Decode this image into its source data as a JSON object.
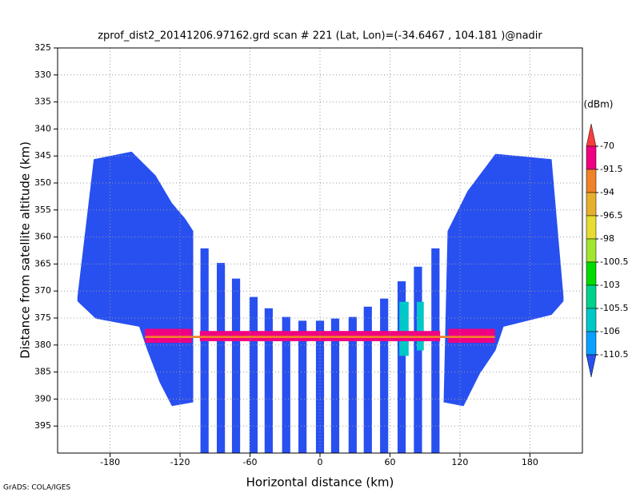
{
  "chart_data": {
    "type": "field",
    "title": "zprof_dist2_20141206.97162.grd  scan # 221  (Lat, Lon)=(-34.6467 , 104.181 )@nadir",
    "xlabel": "Horizontal distance (km)",
    "ylabel": "Distance from satellite altitude (km)",
    "footer": "GrADS: COLA/IGES",
    "xlim": [
      -225,
      225
    ],
    "xticks": [
      -180,
      -120,
      -60,
      0,
      60,
      120,
      180
    ],
    "ylim": [
      325,
      400
    ],
    "y_inverted": true,
    "yticks": [
      325,
      330,
      335,
      340,
      345,
      350,
      355,
      360,
      365,
      370,
      375,
      380,
      385,
      390,
      395
    ],
    "grid": true,
    "colorbar": {
      "unit": "(dBm)",
      "labels": [
        -70,
        -91.5,
        -94,
        -96.5,
        -98,
        -100.5,
        -103,
        -105.5,
        -106,
        -110.5
      ],
      "colors": [
        "#fa3c3c",
        "#f00082",
        "#f08228",
        "#e6af2d",
        "#e6dc32",
        "#a0e632",
        "#00dc00",
        "#00d28c",
        "#00c8c8",
        "#0aa0ff",
        "#2850f0"
      ]
    },
    "field_color": "#2850f0",
    "polygons": [
      [
        [
          -208,
          371.1
        ],
        [
          -194,
          345.6
        ],
        [
          -161.5,
          344.2
        ],
        [
          -141,
          348.6
        ],
        [
          -127,
          353.7
        ],
        [
          -115.6,
          356.6
        ],
        [
          -108.7,
          358.9
        ],
        [
          -108.7,
          390.6
        ],
        [
          -127,
          391.3
        ],
        [
          -137.5,
          386.9
        ],
        [
          -148,
          381
        ],
        [
          -155,
          376.6
        ],
        [
          -192.4,
          375.1
        ],
        [
          -208,
          371.9
        ]
      ],
      [
        [
          208.8,
          371.1
        ],
        [
          198.6,
          345.6
        ],
        [
          150.5,
          344.6
        ],
        [
          126.5,
          351.5
        ],
        [
          109.4,
          358.9
        ],
        [
          106,
          390.6
        ],
        [
          123.1,
          391.3
        ],
        [
          136.8,
          385.4
        ],
        [
          150.5,
          381
        ],
        [
          157.4,
          376.6
        ],
        [
          198.6,
          374.4
        ],
        [
          208.8,
          371.9
        ]
      ]
    ],
    "column_width": 7,
    "columns": [
      [
        -99,
        362.1,
        400
      ],
      [
        -85,
        364.8,
        400
      ],
      [
        -72,
        367.7,
        400
      ],
      [
        -57,
        371.1,
        400
      ],
      [
        -44,
        373.2,
        400
      ],
      [
        -29,
        374.8,
        400
      ],
      [
        -15,
        375.5,
        400
      ],
      [
        0,
        375.5,
        400
      ],
      [
        13,
        375.1,
        400
      ],
      [
        28,
        374.8,
        400
      ],
      [
        41,
        372.9,
        400
      ],
      [
        55,
        371.4,
        400
      ],
      [
        70,
        368.2,
        400
      ],
      [
        84,
        365.5,
        400
      ],
      [
        99,
        362.1,
        400
      ]
    ],
    "bands": [
      {
        "color": "#00c8c8",
        "x": [
          68,
          76
        ],
        "top": 372,
        "bottom": 382
      },
      {
        "color": "#00c8c8",
        "x": [
          83,
          89
        ],
        "top": 372,
        "bottom": 381
      },
      {
        "color": "#f00082",
        "x": [
          -150,
          -110
        ],
        "top": 377,
        "bottom": 379.6
      },
      {
        "color": "#f00082",
        "x": [
          110,
          150
        ],
        "top": 377,
        "bottom": 379.6
      },
      {
        "color": "#f00082",
        "x": [
          -103,
          103
        ],
        "top": 377.4,
        "bottom": 379.3
      },
      {
        "color": "#f08228",
        "x": [
          -150,
          150
        ],
        "top": 378.3,
        "bottom": 378.7
      }
    ]
  }
}
